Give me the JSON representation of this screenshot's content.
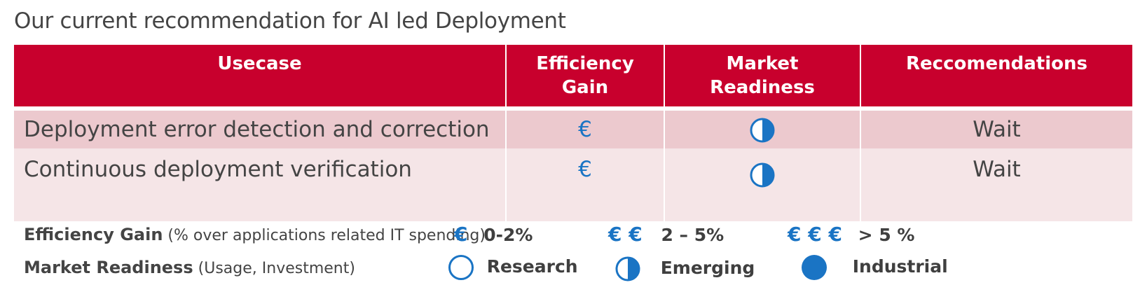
{
  "title": "Our current recommendation for AI led Deployment",
  "table": {
    "headers": [
      "Usecase",
      "Efficiency Gain",
      "Market Readiness",
      "Reccomendations"
    ],
    "rows": [
      {
        "usecase": "Deployment error detection and correction",
        "efficiency": "€",
        "readiness": "emerging",
        "recommendation": "Wait"
      },
      {
        "usecase": "Continuous deployment verification",
        "efficiency": "€",
        "readiness": "emerging",
        "recommendation": "Wait"
      }
    ]
  },
  "legend": {
    "efficiency_label": "Efficiency Gain",
    "efficiency_note": "(% over applications related IT spending)",
    "efficiency_items": [
      {
        "symbol": "€",
        "text": "0-2%"
      },
      {
        "symbol": "€ €",
        "text": "2 – 5%"
      },
      {
        "symbol": "€ € €",
        "text": "> 5 %"
      }
    ],
    "readiness_label": "Market Readiness",
    "readiness_note": "(Usage, Investment)",
    "readiness_items": [
      {
        "icon": "empty-circle-icon",
        "text": "Research"
      },
      {
        "icon": "half-circle-icon",
        "text": "Emerging"
      },
      {
        "icon": "full-circle-icon",
        "text": "Industrial"
      }
    ]
  },
  "colors": {
    "header": "#c8002d",
    "row1": "#ecc9ce",
    "row2": "#f5e5e7",
    "accent": "#1a74c4"
  }
}
